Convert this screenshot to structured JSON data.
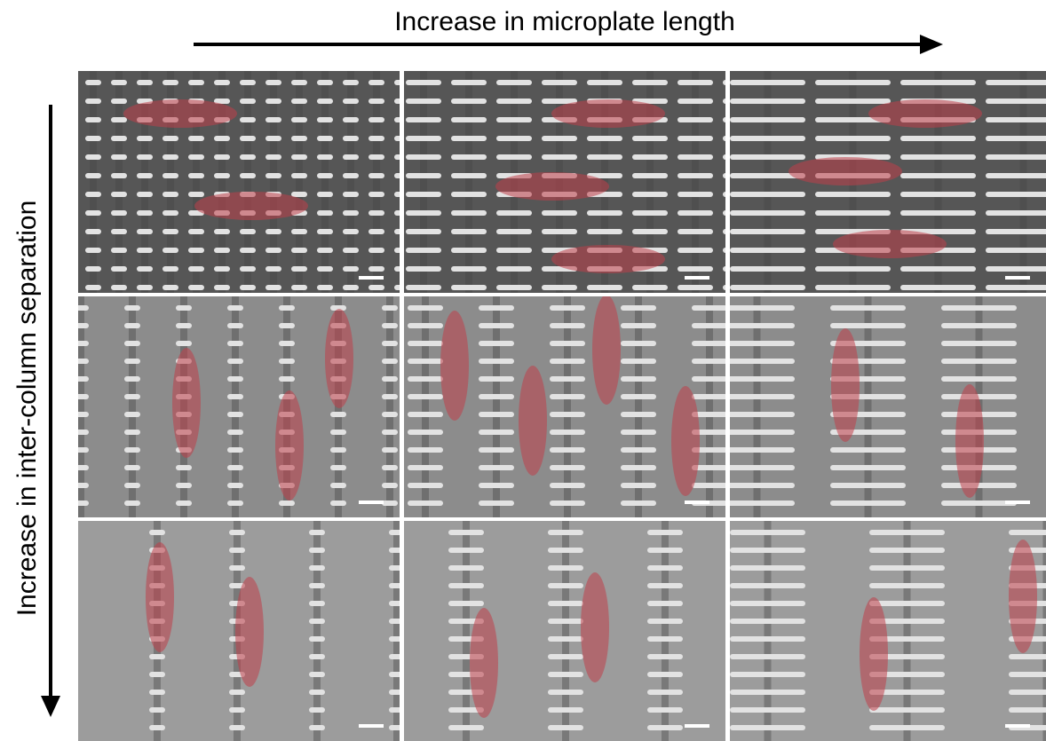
{
  "labels": {
    "top": "Increase in microplate length",
    "left": "Increase in inter-column separation"
  }
}
